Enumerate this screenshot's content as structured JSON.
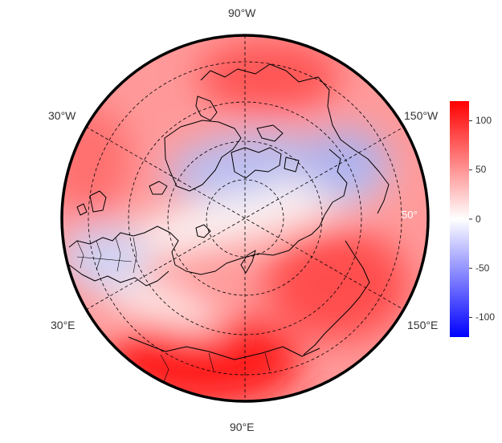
{
  "map": {
    "projection": "north polar stereographic",
    "longitude_labels": {
      "top": "90°W",
      "top_left": "30°W",
      "top_right": "150°W",
      "bottom_left": "30°E",
      "bottom_right": "150°E",
      "bottom": "90°E"
    },
    "latitude_label": "50°",
    "colors": {
      "high": "#ff0000",
      "mid": "#ffffff",
      "low": "#0000ff",
      "coastline": "#000000",
      "graticule": "#000000"
    }
  },
  "colorbar": {
    "ticks": [
      "100",
      "50",
      "0",
      "-50",
      "-100"
    ],
    "range": [
      -120,
      120
    ]
  }
}
